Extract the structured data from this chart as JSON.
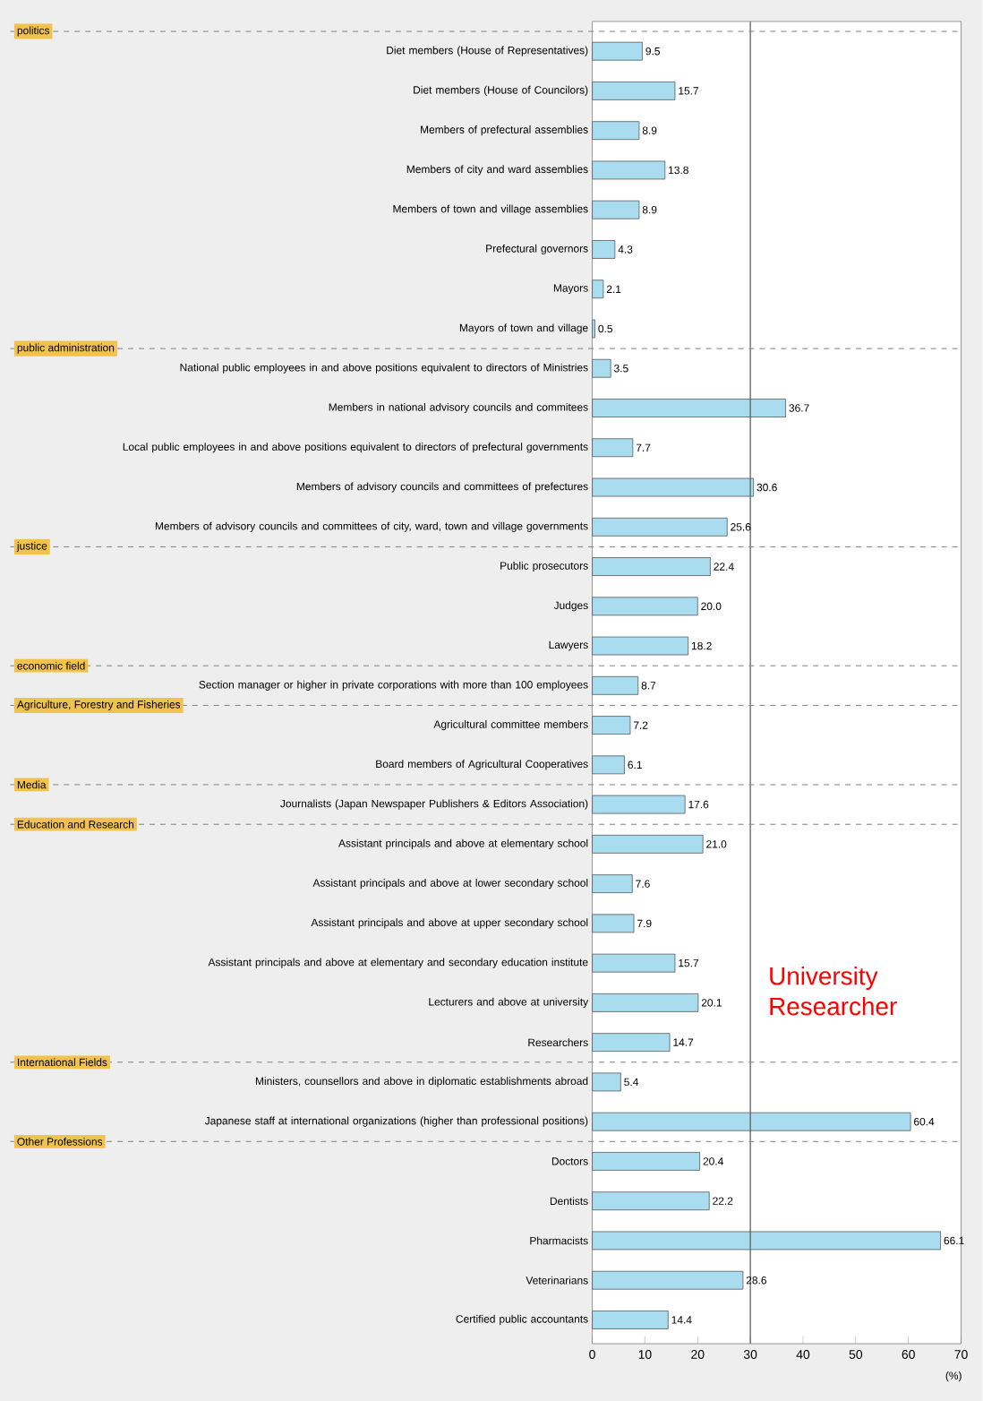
{
  "chart_data": {
    "type": "bar",
    "orientation": "horizontal",
    "xlabel": "(%)",
    "categories": [
      "Diet members (House of Representatives)",
      "Diet members (House of Councilors)",
      "Members of prefectural assemblies",
      "Members of city and ward assemblies",
      "Members of town and village assemblies",
      "Prefectural governors",
      "Mayors",
      "Mayors of town and village",
      "National public employees in and above positions equivalent to directors of Ministries",
      "Members in national advisory councils and commitees",
      "Local public employees in and above positions equivalent to directors of prefectural governments",
      "Members of advisory councils and committees of prefectures",
      "Members of advisory councils and committees of city, ward, town and village governments",
      "Public prosecutors",
      "Judges",
      "Lawyers",
      "Section manager or higher in private corporations with more than 100 employees",
      "Agricultural committee members",
      "Board members of Agricultural Cooperatives",
      "Journalists (Japan Newspaper Publishers & Editors Association)",
      "Assistant principals and above at elementary school",
      "Assistant principals and above at lower secondary school",
      "Assistant principals and above at upper secondary school",
      "Assistant principals and above at elementary and secondary education institute",
      "Lecturers and above at university",
      "Researchers",
      "Ministers, counsellors and above in diplomatic establishments abroad",
      "Japanese staff at international organizations (higher than professional positions)",
      "Doctors",
      "Dentists",
      "Pharmacists",
      "Veterinarians",
      "Certified public accountants"
    ],
    "values": [
      9.5,
      15.7,
      8.9,
      13.8,
      8.9,
      4.3,
      2.1,
      0.5,
      3.5,
      36.7,
      7.7,
      30.6,
      25.6,
      22.4,
      20.0,
      18.2,
      8.7,
      7.2,
      6.1,
      17.6,
      21.0,
      7.6,
      7.9,
      15.7,
      20.1,
      14.7,
      5.4,
      60.4,
      20.4,
      22.2,
      66.1,
      28.6,
      14.4
    ],
    "value_labels": [
      "9.5",
      "15.7",
      "8.9",
      "13.8",
      "8.9",
      "4.3",
      "2.1",
      "0.5",
      "3.5",
      "36.7",
      "7.7",
      "30.6",
      "25.6",
      "22.4",
      "20.0",
      "18.2",
      "8.7",
      "7.2",
      "6.1",
      "17.6",
      "21.0",
      "7.6",
      "7.9",
      "15.7",
      "20.1",
      "14.7",
      "5.4",
      "60.4",
      "20.4",
      "22.2",
      "66.1",
      "28.6",
      "14.4"
    ],
    "color": "#a9dcef",
    "xlim": [
      0,
      70
    ],
    "xticks": [
      0,
      10,
      20,
      30,
      40,
      50,
      60,
      70
    ],
    "ref_lines": [
      {
        "axis": "x",
        "value": 30,
        "color": "#555555"
      }
    ],
    "annotations": [
      "politics",
      "public administration",
      "justice",
      "economic field",
      "Agriculture, Forestry and Fisheries",
      "Media",
      "Education and Research",
      "International Fields",
      "Other Professions",
      "University Researcher"
    ],
    "grid": false
  }
}
